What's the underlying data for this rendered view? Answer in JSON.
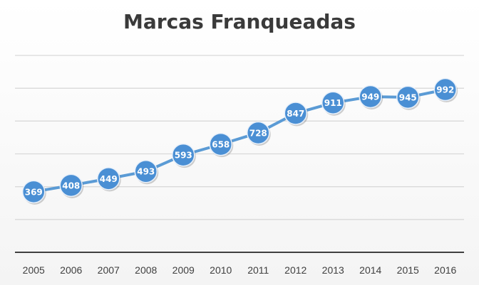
{
  "chart_data": {
    "type": "line",
    "title": "Marcas Franqueadas",
    "xlabel": "",
    "ylabel": "",
    "categories": [
      "2005",
      "2006",
      "2007",
      "2008",
      "2009",
      "2010",
      "2011",
      "2012",
      "2013",
      "2014",
      "2015",
      "2016"
    ],
    "values": [
      369,
      408,
      449,
      493,
      593,
      658,
      728,
      847,
      911,
      949,
      945,
      992
    ],
    "ylim": [
      0,
      1200
    ],
    "grid": true,
    "legend": "none",
    "colors": {
      "line": "#5b9bd5",
      "marker": "#4a8fd4",
      "marker_border": "#e8f0fa",
      "grid": "#d9d9d9",
      "axis": "#404040"
    }
  }
}
